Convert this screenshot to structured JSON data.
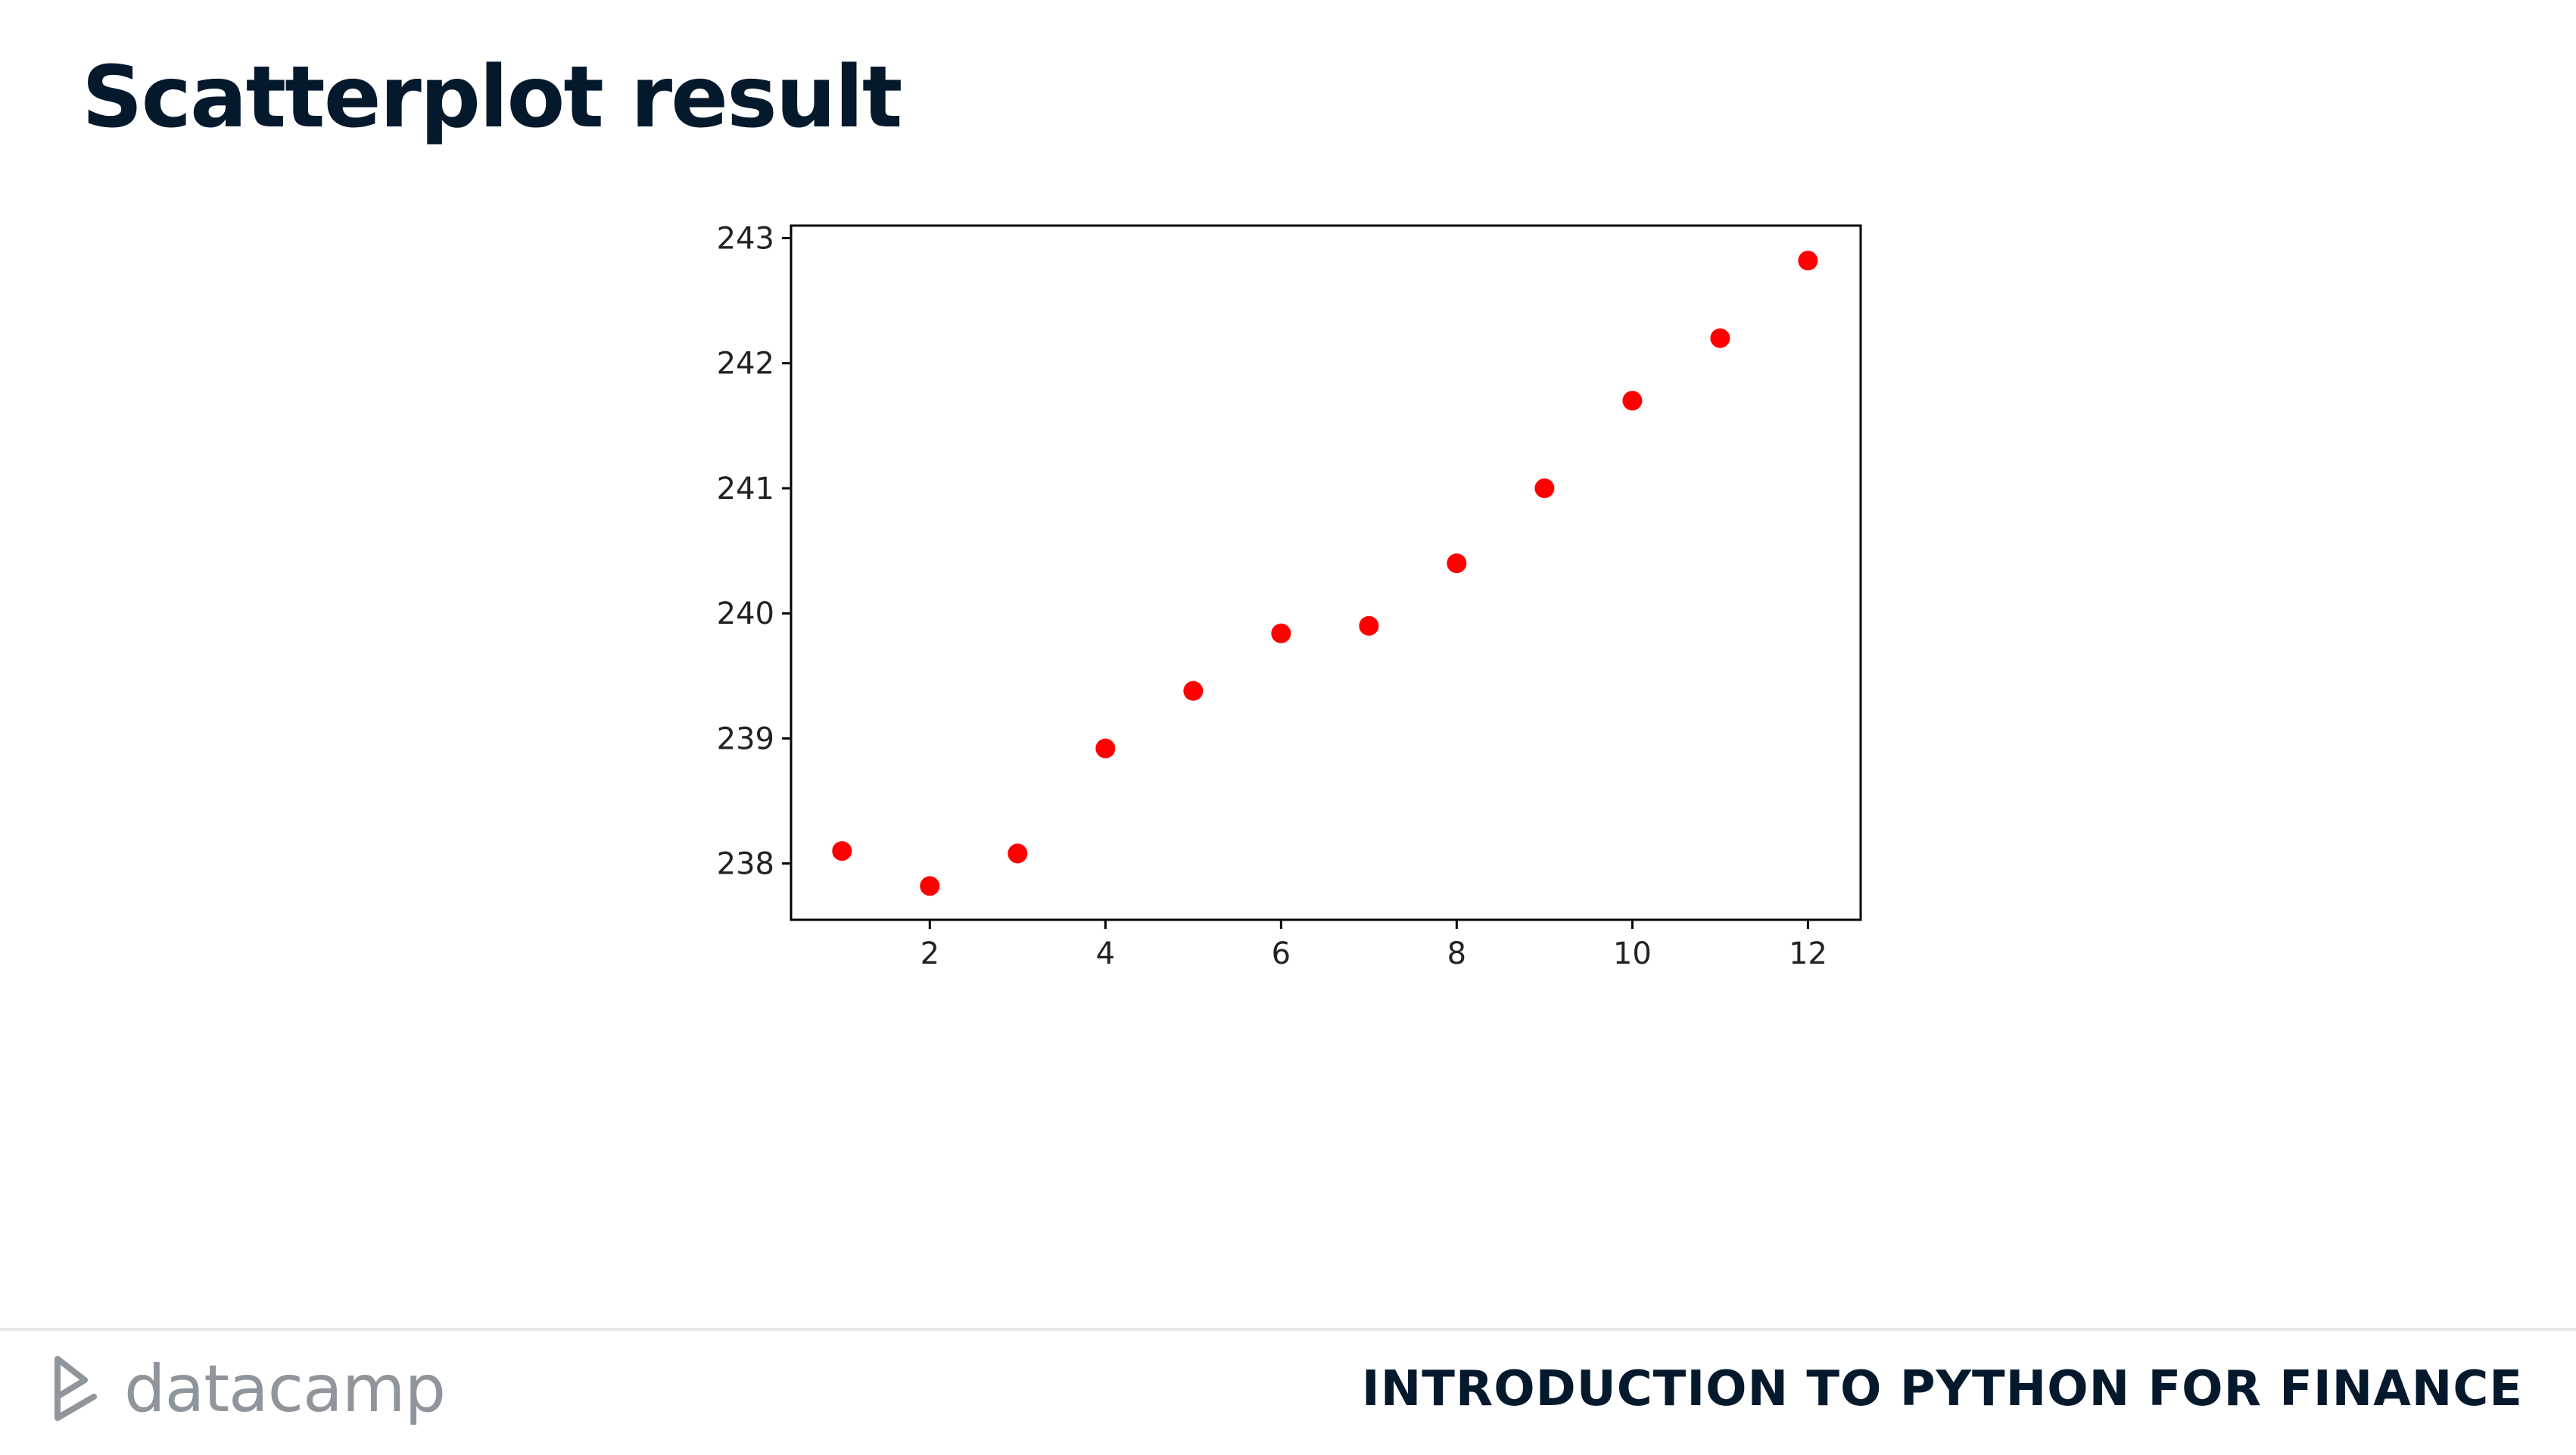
{
  "slide": {
    "title": "Scatterplot result"
  },
  "footer": {
    "logo_text": "datacamp",
    "course_title": "INTRODUCTION TO PYTHON FOR FINANCE"
  },
  "colors": {
    "title": "#05192d",
    "marker": "#ff0000",
    "logo": "#8f959b"
  },
  "chart_data": {
    "type": "scatter",
    "title": "",
    "xlabel": "",
    "ylabel": "",
    "x": [
      1,
      2,
      3,
      4,
      5,
      6,
      7,
      8,
      9,
      10,
      11,
      12
    ],
    "y": [
      238.1,
      237.82,
      238.08,
      238.92,
      239.38,
      239.84,
      239.9,
      240.4,
      241.0,
      241.7,
      242.2,
      242.82
    ],
    "xlim": [
      0.42,
      12.6
    ],
    "ylim": [
      237.55,
      243.1
    ],
    "xticks": [
      2,
      4,
      6,
      8,
      10,
      12
    ],
    "yticks": [
      238,
      239,
      240,
      241,
      242,
      243
    ],
    "grid": false,
    "marker_color": "#ff0000"
  }
}
